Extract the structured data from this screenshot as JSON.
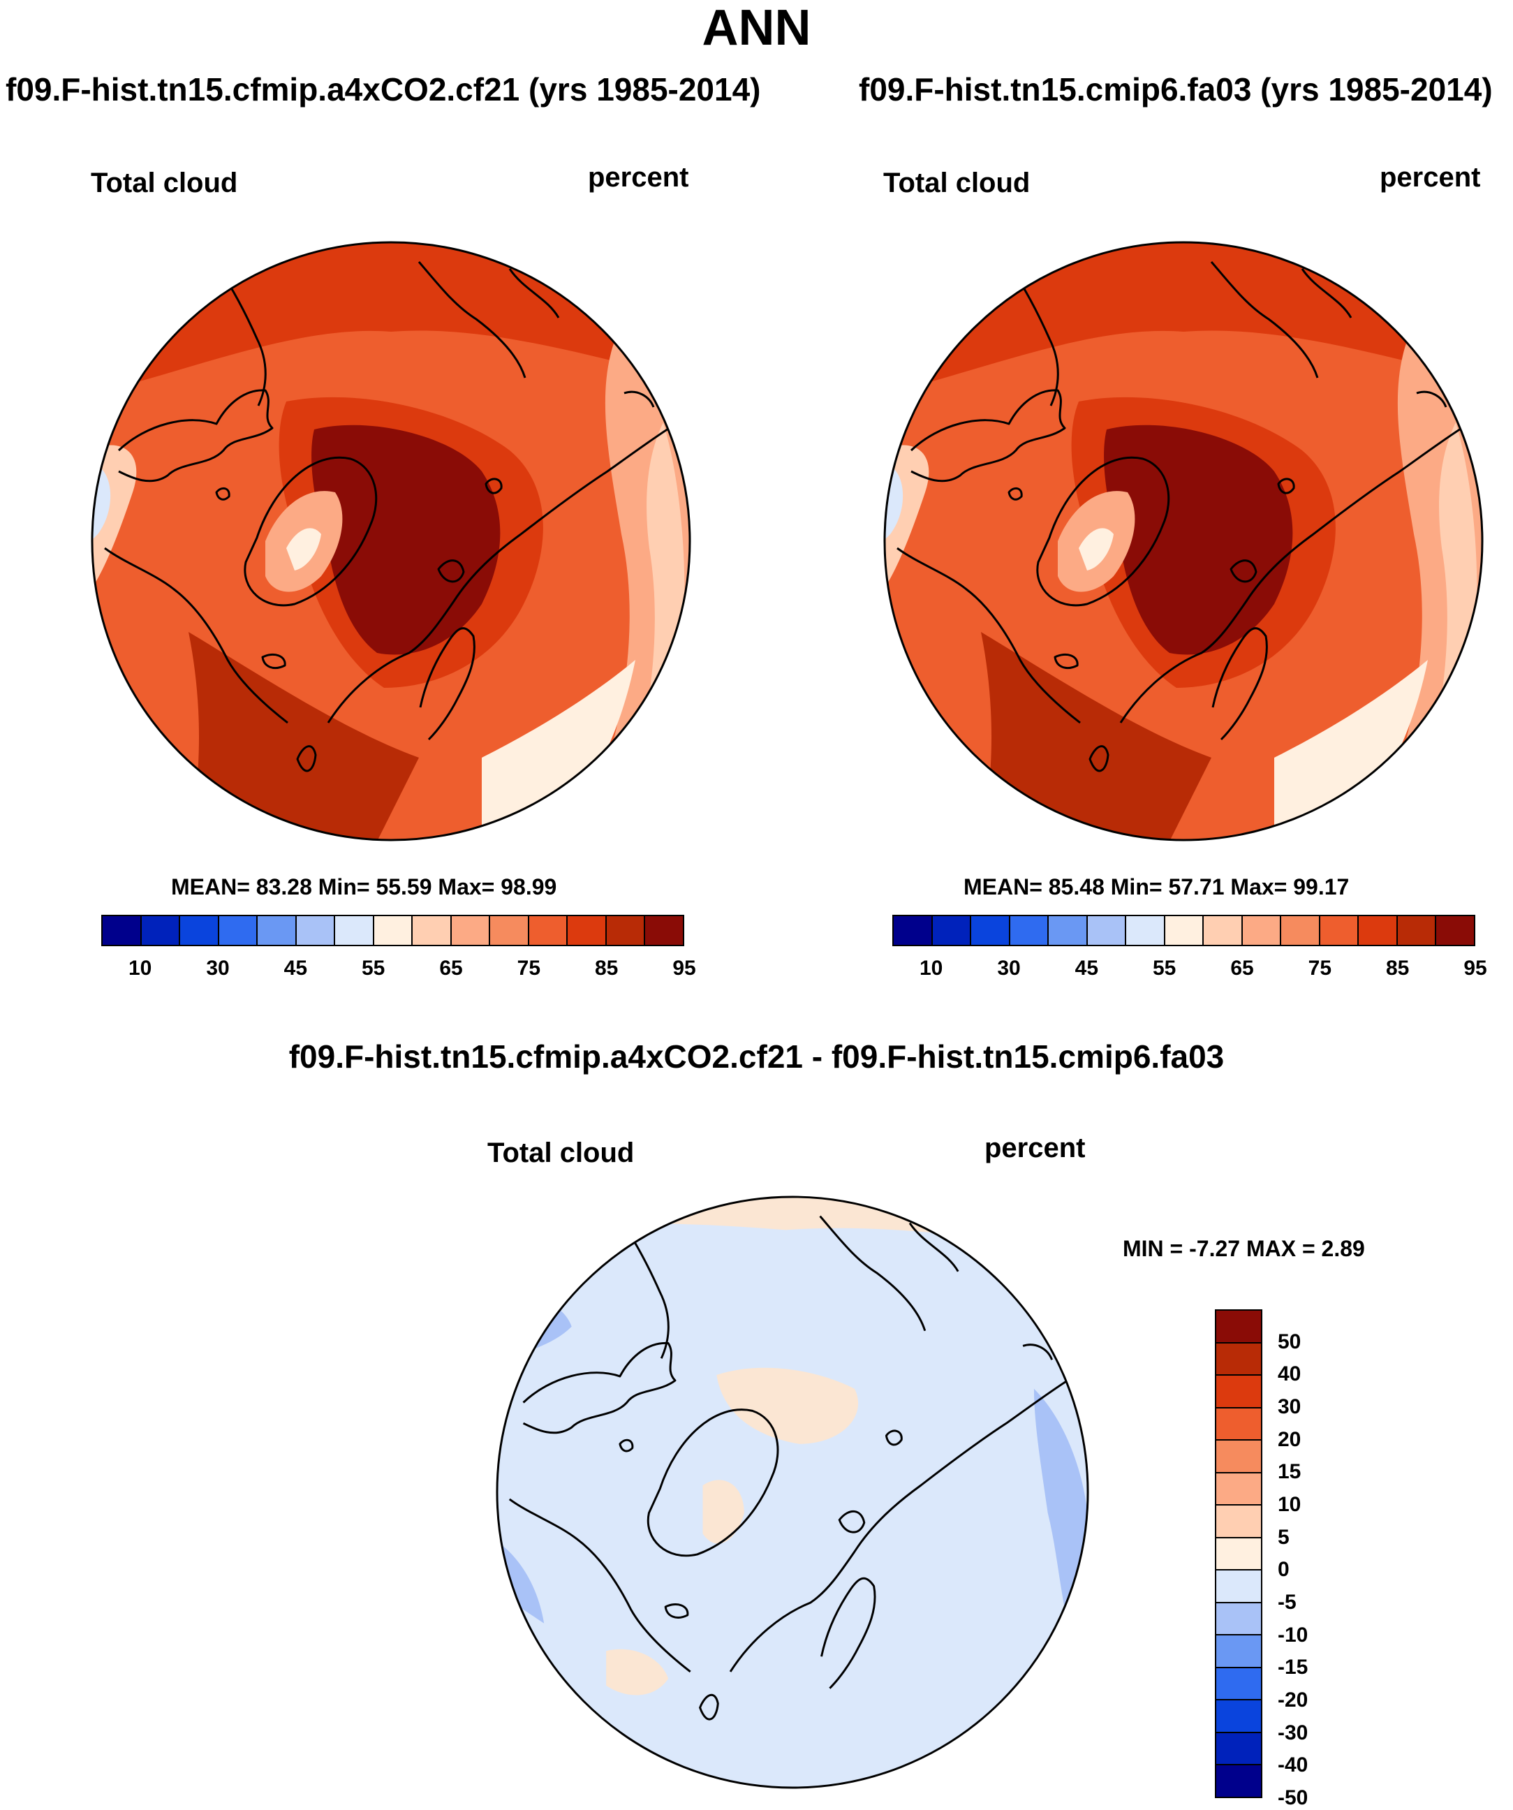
{
  "title": "ANN",
  "panels": [
    {
      "case_title": "f09.F-hist.tn15.cfmip.a4xCO2.cf21 (yrs 1985-2014)",
      "variable": "Total cloud",
      "units": "percent",
      "stats": "MEAN=  83.28  Min=  55.59  Max=  98.99"
    },
    {
      "case_title": "f09.F-hist.tn15.cmip6.fa03 (yrs 1985-2014)",
      "variable": "Total cloud",
      "units": "percent",
      "stats": "MEAN=  85.48  Min=  57.71  Max=  99.17"
    }
  ],
  "diff": {
    "title": "f09.F-hist.tn15.cfmip.a4xCO2.cf21 - f09.F-hist.tn15.cmip6.fa03",
    "variable": "Total cloud",
    "units": "percent",
    "stats": "MIN =  -7.27 MAX =   2.89"
  },
  "colorbar_main": {
    "colors": [
      "#00008c",
      "#0022bb",
      "#0a44dd",
      "#2f6bf0",
      "#6a98f3",
      "#a9c2f7",
      "#dbe8fb",
      "#fff0e0",
      "#ffcfb2",
      "#fcaa85",
      "#f68b5e",
      "#ee5e2e",
      "#dc3a0e",
      "#b82b06",
      "#8a0c06"
    ],
    "tick_labels": [
      "10",
      "30",
      "45",
      "55",
      "65",
      "75",
      "85",
      "95"
    ]
  },
  "colorbar_diff": {
    "colors": [
      "#8a0c06",
      "#b82b06",
      "#dc3a0e",
      "#ee5e2e",
      "#f68b5e",
      "#fcaa85",
      "#ffcfb2",
      "#fff0e0",
      "#dbe8fb",
      "#a9c2f7",
      "#6a98f3",
      "#2f6bf0",
      "#0a44dd",
      "#0022bb",
      "#00008c"
    ],
    "tick_labels": [
      "50",
      "40",
      "30",
      "20",
      "15",
      "10",
      "5",
      "0",
      "-5",
      "-10",
      "-15",
      "-20",
      "-30",
      "-40",
      "-50"
    ]
  },
  "map_colors": {
    "very_high": "#8a0c06",
    "high": "#b82b06",
    "upper": "#dc3a0e",
    "mid": "#ee5e2e",
    "lowmid": "#f68b5e",
    "low": "#fcaa85",
    "lower": "#ffcfb2",
    "lowest": "#fff0e0",
    "blue_pale": "#dbe8fb",
    "diff_bg": "#dbe8fb",
    "diff_pos": "#fbe6d3",
    "diff_neg": "#a9c2f7"
  }
}
